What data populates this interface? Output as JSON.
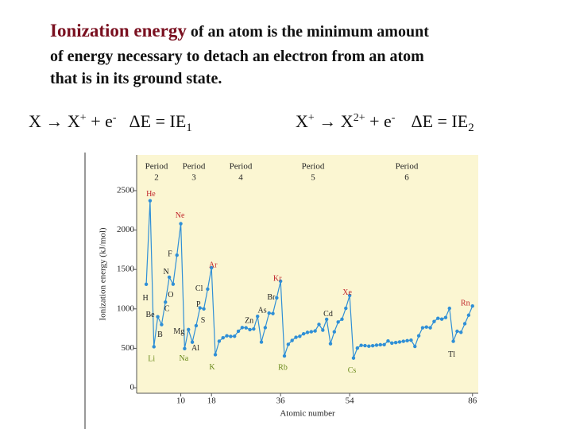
{
  "header": {
    "term": "Ionization energy",
    "line1_rest": "of an atom is the minimum amount",
    "line2": "of energy necessary to detach an electron from an atom",
    "line3": "that is in its ground state."
  },
  "equations": [
    {
      "parts": [
        "X → X",
        "+",
        " + e",
        "-",
        "ΔE = IE",
        "1"
      ]
    },
    {
      "parts": [
        "X",
        "+",
        " → X",
        "2+",
        " + e",
        "-",
        "ΔE = IE",
        "2"
      ]
    }
  ],
  "chart_data": {
    "type": "line",
    "ylabel": "Ionization energy (kJ/mol)",
    "xlabel": "Atomic number",
    "color": "#2f8fd6",
    "x": [
      1,
      2,
      3,
      4,
      5,
      6,
      7,
      8,
      9,
      10,
      11,
      12,
      13,
      14,
      15,
      16,
      17,
      18,
      19,
      20,
      21,
      22,
      23,
      24,
      25,
      26,
      27,
      28,
      29,
      30,
      31,
      32,
      33,
      34,
      35,
      36,
      37,
      38,
      39,
      40,
      41,
      42,
      43,
      44,
      45,
      46,
      47,
      48,
      49,
      50,
      51,
      52,
      53,
      54,
      55,
      56,
      57,
      58,
      59,
      60,
      61,
      62,
      63,
      64,
      65,
      66,
      67,
      68,
      69,
      70,
      71,
      72,
      73,
      74,
      75,
      76,
      77,
      78,
      79,
      80,
      81,
      82,
      83,
      84,
      85,
      86
    ],
    "values": [
      1312,
      2372,
      520,
      900,
      801,
      1086,
      1402,
      1314,
      1681,
      2081,
      496,
      738,
      578,
      787,
      1012,
      1000,
      1251,
      1521,
      419,
      590,
      633,
      659,
      651,
      653,
      717,
      763,
      760,
      737,
      746,
      906,
      579,
      762,
      947,
      941,
      1140,
      1351,
      403,
      550,
      600,
      640,
      652,
      684,
      702,
      710,
      720,
      804,
      731,
      868,
      558,
      709,
      834,
      869,
      1008,
      1170,
      376,
      503,
      538,
      534,
      527,
      533,
      540,
      545,
      547,
      593,
      566,
      573,
      581,
      589,
      597,
      603,
      524,
      659,
      761,
      770,
      760,
      840,
      880,
      870,
      890,
      1007,
      589,
      716,
      703,
      812,
      920,
      1037
    ],
    "point_labels": [
      "H",
      "He",
      "Li",
      "Be",
      "B",
      "C",
      "N",
      "O",
      "F",
      "Ne",
      "Na",
      "Mg",
      "Al",
      null,
      "P",
      "S",
      "Cl",
      "Ar",
      "K",
      null,
      null,
      null,
      null,
      null,
      null,
      null,
      null,
      null,
      null,
      "Zn",
      null,
      null,
      "As",
      null,
      "Br",
      "Kr",
      "Rb",
      null,
      null,
      null,
      null,
      null,
      null,
      null,
      null,
      null,
      null,
      "Cd",
      null,
      null,
      null,
      null,
      null,
      "Xe",
      "Cs",
      null,
      null,
      null,
      null,
      null,
      null,
      null,
      null,
      null,
      null,
      null,
      null,
      null,
      null,
      null,
      null,
      null,
      null,
      null,
      null,
      null,
      null,
      null,
      null,
      null,
      "Tl",
      null,
      null,
      null,
      null,
      "Rn"
    ],
    "period_labels": [
      {
        "text": "Period",
        "number": "2"
      },
      {
        "text": "Period",
        "number": "3"
      },
      {
        "text": "Period",
        "number": "4"
      },
      {
        "text": "Period",
        "number": "5"
      },
      {
        "text": "Period",
        "number": "6"
      }
    ],
    "xlim": [
      -1.5,
      87.5
    ],
    "ylim": [
      -70,
      2953
    ],
    "xticks": [
      10,
      18,
      36,
      54,
      86
    ],
    "yticks": [
      0,
      500,
      1000,
      1500,
      2000,
      2500
    ]
  }
}
